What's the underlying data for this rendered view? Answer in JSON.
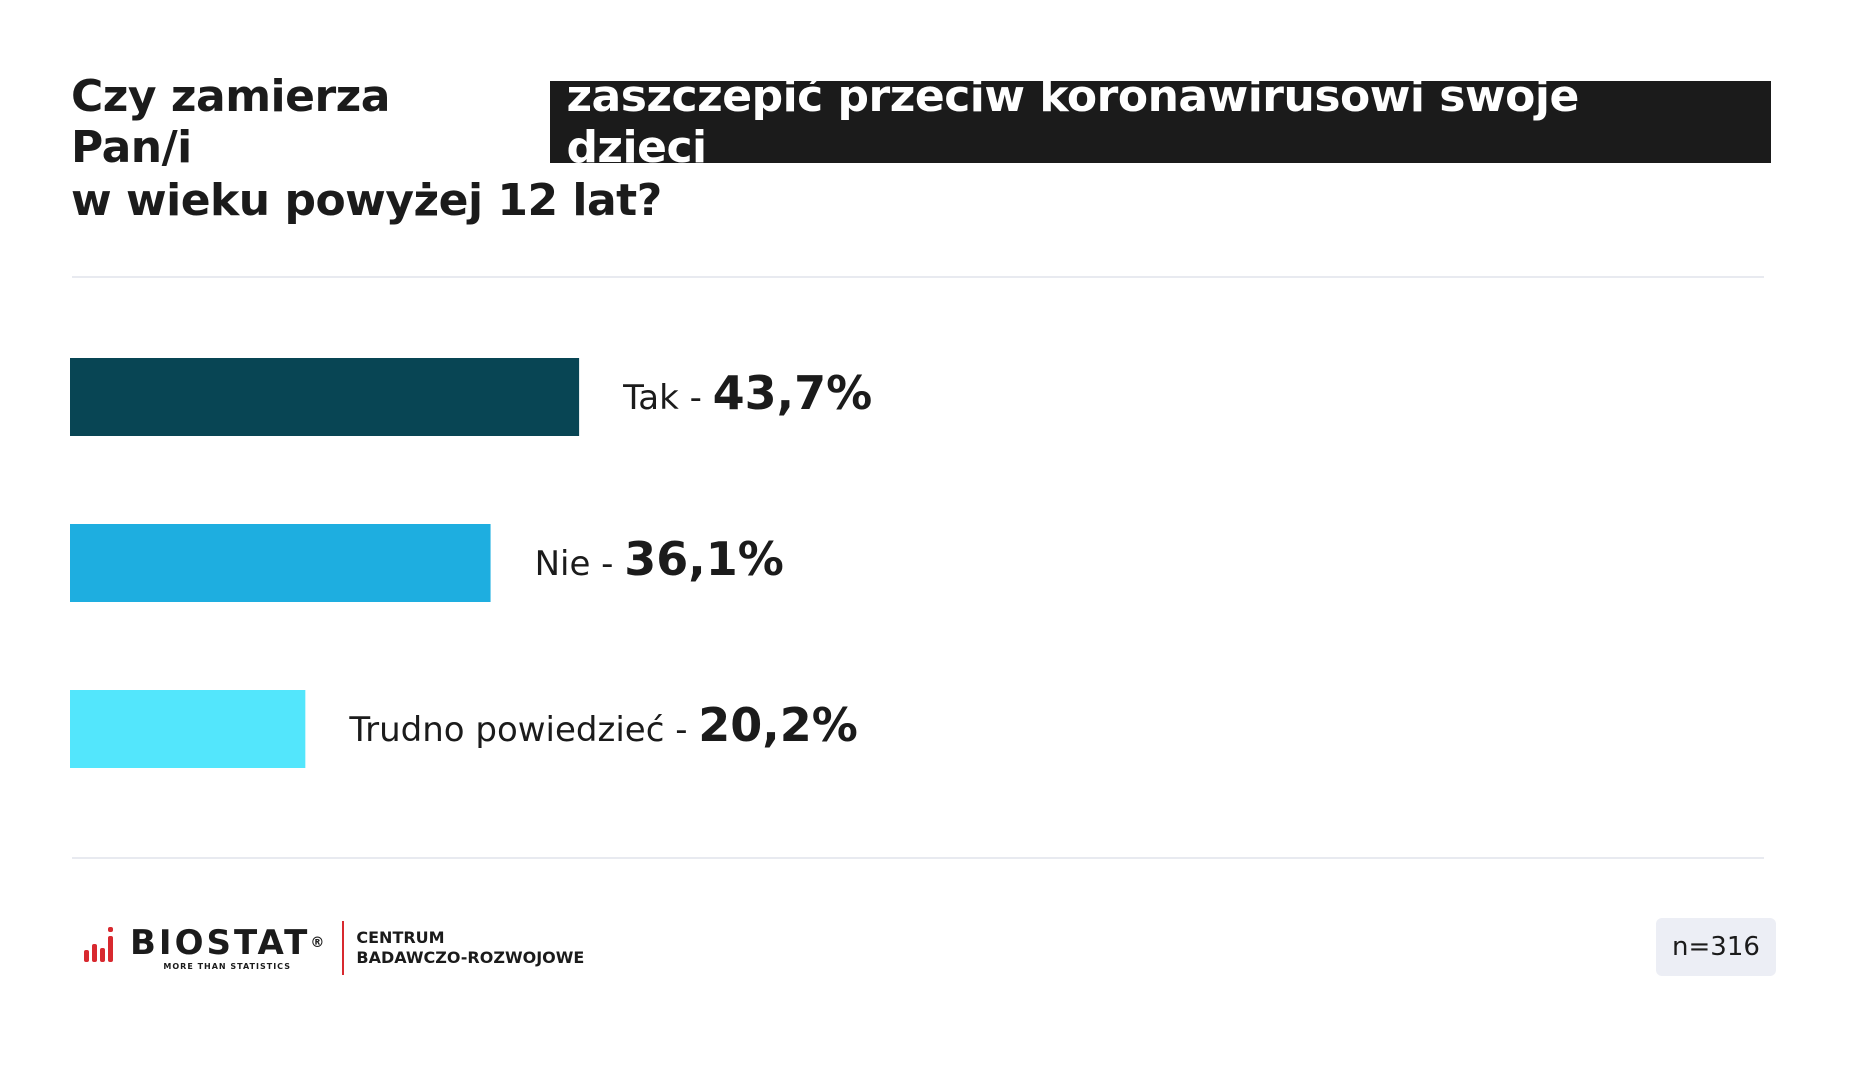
{
  "title": {
    "part1": "Czy zamierza Pan/i",
    "highlight": "zaszczepić przeciw koronawirusowi swoje dzieci",
    "part2": "w wieku powyżej 12 lat?"
  },
  "chart_data": {
    "type": "bar",
    "orientation": "horizontal",
    "categories": [
      "Tak",
      "Nie",
      "Trudno powiedzieć"
    ],
    "values": [
      43.7,
      36.1,
      20.2
    ],
    "value_labels": [
      "43,7%",
      "36,1%",
      "20,2%"
    ],
    "separator": "-",
    "colors": [
      "#084554",
      "#1eaee0",
      "#53e6fc"
    ],
    "xlim": [
      0,
      100
    ],
    "grid": false,
    "legend": "none",
    "title": "",
    "xlabel": "",
    "ylabel": ""
  },
  "footer": {
    "brand": "BIOSTAT",
    "registered": "®",
    "tagline": "MORE THAN STATISTICS",
    "centrum_line1": "CENTRUM",
    "centrum_line2": "BADAWCZO-ROZWOJOWE",
    "sample": "n=316"
  },
  "colors": {
    "text": "#1b1b1b",
    "divider": "#e8eaf0",
    "brand_red": "#d8292f",
    "badge_bg": "#eceef5"
  }
}
